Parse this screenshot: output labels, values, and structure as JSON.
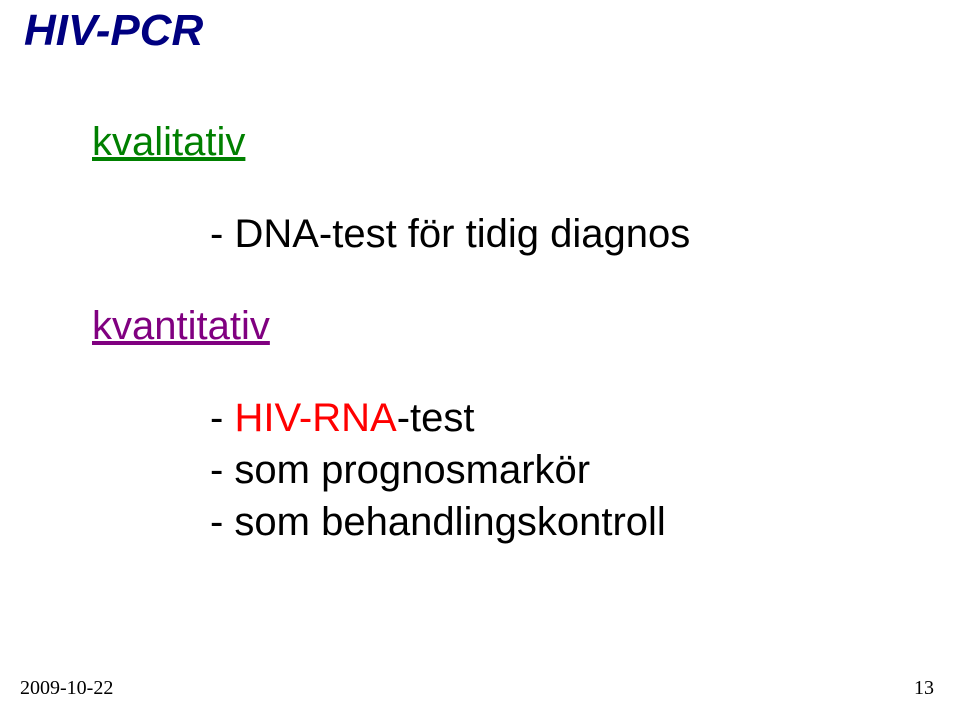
{
  "title": "HIV-PCR",
  "section1": {
    "heading": "kvalitativ",
    "bullet_prefix": "- ",
    "bullet_text": "DNA-test för tidig diagnos"
  },
  "section2": {
    "heading": "kvantitativ",
    "bullet1_prefix": "- ",
    "bullet1_red": "HIV-RNA",
    "bullet1_rest": "-test",
    "bullet2": "- som prognosmarkör",
    "bullet3": "- som behandlingskontroll"
  },
  "footer": {
    "date": "2009-10-22",
    "page": "13"
  },
  "colors": {
    "title": "#000080",
    "qualitative": "#008000",
    "quantitative": "#800080",
    "highlight": "#ff0000",
    "body": "#000000",
    "background": "#ffffff"
  },
  "font": {
    "body_family": "Comic Sans MS",
    "body_size_pt": 30,
    "title_size_pt": 33,
    "footer_family": "Times New Roman",
    "footer_size_pt": 15
  }
}
